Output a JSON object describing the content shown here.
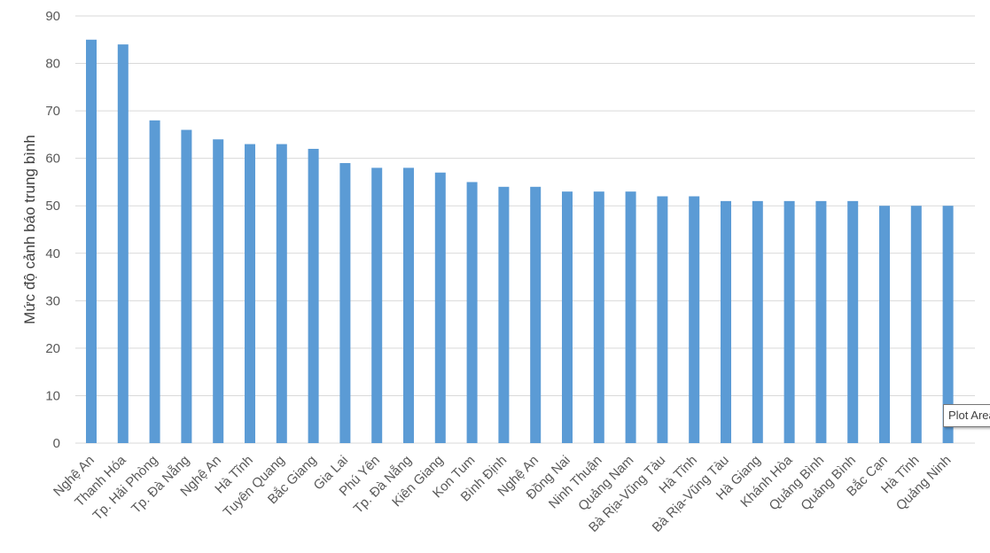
{
  "chart_data": {
    "type": "bar",
    "title": "",
    "xlabel": "",
    "ylabel": "Mức độ cảnh báo trung bình",
    "ylim": [
      0,
      90
    ],
    "yticks": [
      0,
      10,
      20,
      30,
      40,
      50,
      60,
      70,
      80,
      90
    ],
    "grid": true,
    "legend": "none",
    "bar_color": "#5b9bd5",
    "categories": [
      "Nghệ An",
      "Thanh Hóa",
      "Tp. Hải Phòng",
      "Tp. Đà Nẵng",
      "Nghệ An",
      "Hà Tĩnh",
      "Tuyên Quang",
      "Bắc Giang",
      "Gia Lai",
      "Phú Yên",
      "Tp. Đà Nẵng",
      "Kiên Giang",
      "Kon Tum",
      "Bình Định",
      "Nghệ An",
      "Đồng Nai",
      "Ninh Thuận",
      "Quảng Nam",
      "Bà Rịa-Vũng Tàu",
      "Hà Tĩnh",
      "Bà Rịa-Vũng Tàu",
      "Hà Giang",
      "Khánh Hòa",
      "Quảng Bình",
      "Quảng Bình",
      "Bắc Cạn",
      "Hà Tĩnh",
      "Quảng Ninh"
    ],
    "values": [
      85,
      84,
      68,
      66,
      64,
      63,
      63,
      62,
      59,
      58,
      58,
      57,
      55,
      54,
      54,
      53,
      53,
      53,
      52,
      52,
      51,
      51,
      51,
      51,
      51,
      50,
      50,
      50
    ]
  },
  "tooltip": {
    "text": "Plot Area"
  }
}
